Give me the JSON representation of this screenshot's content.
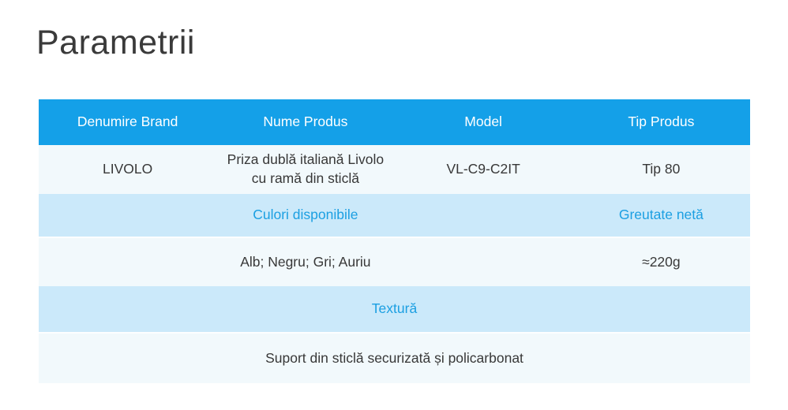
{
  "page": {
    "title": "Parametrii"
  },
  "colors": {
    "header_background": "#14a0e8",
    "band_background": "#cbe9fa",
    "light_row_background": "#f2f9fc",
    "accent_text": "#1b9fe2",
    "body_text": "#383838",
    "header_text": "#ffffff",
    "title_text": "#3a3a3a"
  },
  "table": {
    "headers": [
      "Denumire Brand",
      "Nume Produs",
      "Model",
      "Tip Produs"
    ],
    "product": {
      "brand": "LIVOLO",
      "name_line1": "Priza dublă italiană Livolo",
      "name_line2": "cu ramă din sticlă",
      "model": "VL-C9-C2IT",
      "type": "Tip 80"
    },
    "secondary_labels": {
      "colors_label": "Culori disponibile",
      "weight_label": "Greutate netă"
    },
    "secondary_values": {
      "colors_value": "Alb; Negru; Gri; Auriu",
      "weight_value": "≈220g"
    },
    "texture": {
      "label": "Textură",
      "value": "Suport din sticlă securizată și policarbonat"
    }
  }
}
